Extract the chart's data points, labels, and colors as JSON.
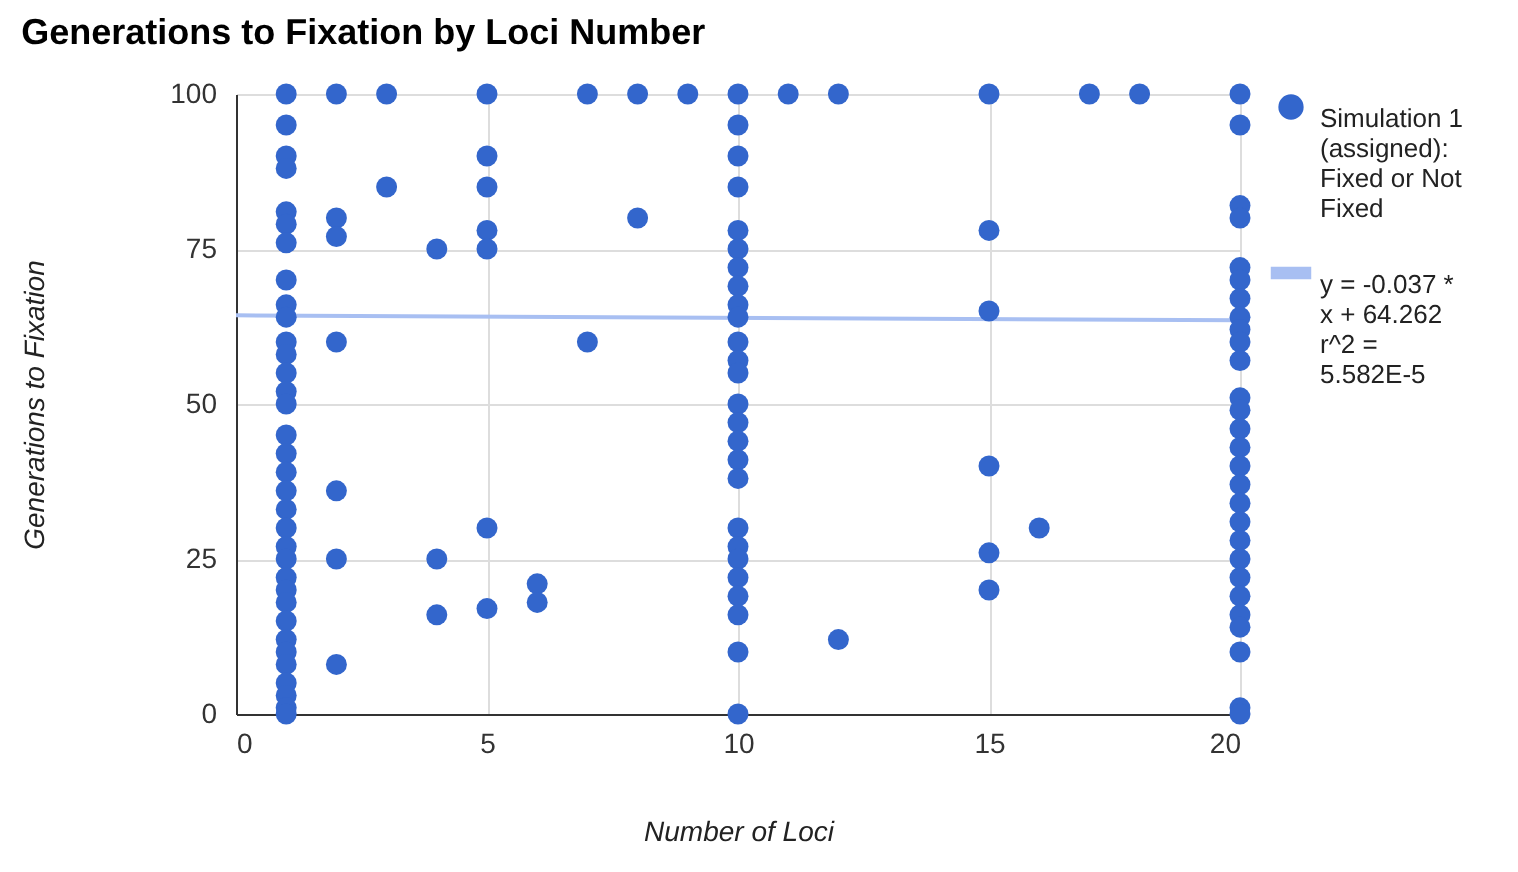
{
  "chart_data": {
    "type": "scatter",
    "title": "Generations to Fixation by Loci Number",
    "xlabel": "Number of Loci",
    "ylabel": "Generations to Fixation",
    "xlim": [
      0,
      20
    ],
    "xticks": [
      0,
      5,
      10,
      15,
      20
    ],
    "ylim": [
      0,
      100
    ],
    "yticks": [
      0,
      25,
      50,
      75,
      100
    ],
    "grid": true,
    "legend": "right",
    "series": [
      {
        "name": "Simulation 1 (assigned): Fixed or Not Fixed",
        "color": "#3366cc",
        "marker": "circle",
        "x": [
          1,
          1,
          1,
          1,
          1,
          1,
          1,
          1,
          1,
          1,
          1,
          1,
          1,
          1,
          1,
          1,
          1,
          1,
          1,
          1,
          1,
          1,
          1,
          1,
          1,
          1,
          1,
          1,
          1,
          1,
          1,
          1,
          1,
          1,
          2,
          2,
          2,
          2,
          2,
          2,
          2,
          3,
          3,
          4,
          4,
          4,
          5,
          5,
          5,
          5,
          5,
          5,
          5,
          6,
          6,
          7,
          7,
          8,
          8,
          9,
          10,
          10,
          10,
          10,
          10,
          10,
          10,
          10,
          10,
          10,
          10,
          10,
          10,
          10,
          10,
          10,
          10,
          10,
          10,
          10,
          10,
          10,
          10,
          10,
          10,
          10,
          11,
          12,
          12,
          15,
          15,
          15,
          15,
          15,
          15,
          16,
          17,
          18,
          20,
          20,
          20,
          20,
          20,
          20,
          20,
          20,
          20,
          20,
          20,
          20,
          20,
          20,
          20,
          20,
          20,
          20,
          20,
          20,
          20,
          20,
          20,
          20,
          20,
          20,
          20,
          20
        ],
        "values": [
          100,
          95,
          90,
          88,
          81,
          79,
          76,
          70,
          66,
          64,
          60,
          58,
          55,
          52,
          50,
          45,
          42,
          39,
          36,
          33,
          30,
          27,
          25,
          22,
          20,
          18,
          15,
          12,
          10,
          8,
          5,
          3,
          1,
          0,
          100,
          80,
          77,
          60,
          36,
          25,
          8,
          100,
          85,
          75,
          25,
          16,
          100,
          90,
          85,
          78,
          75,
          30,
          17,
          21,
          18,
          100,
          60,
          100,
          80,
          100,
          100,
          95,
          90,
          85,
          78,
          75,
          72,
          69,
          66,
          64,
          60,
          57,
          55,
          50,
          47,
          44,
          41,
          38,
          30,
          27,
          25,
          22,
          19,
          16,
          10,
          0,
          100,
          100,
          12,
          100,
          78,
          65,
          40,
          26,
          20,
          30,
          100,
          100,
          100,
          95,
          82,
          80,
          72,
          70,
          67,
          64,
          62,
          60,
          57,
          51,
          49,
          46,
          43,
          40,
          37,
          34,
          31,
          28,
          25,
          22,
          19,
          16,
          14,
          10,
          1,
          0
        ]
      },
      {
        "name": "y = -0.037 * x + 64.262 r^2 = 5.582E-5",
        "color": "#a8bff2",
        "type": "line",
        "line_style": "solid",
        "x": [
          0,
          20
        ],
        "values": [
          64.3,
          63.5
        ]
      }
    ]
  }
}
